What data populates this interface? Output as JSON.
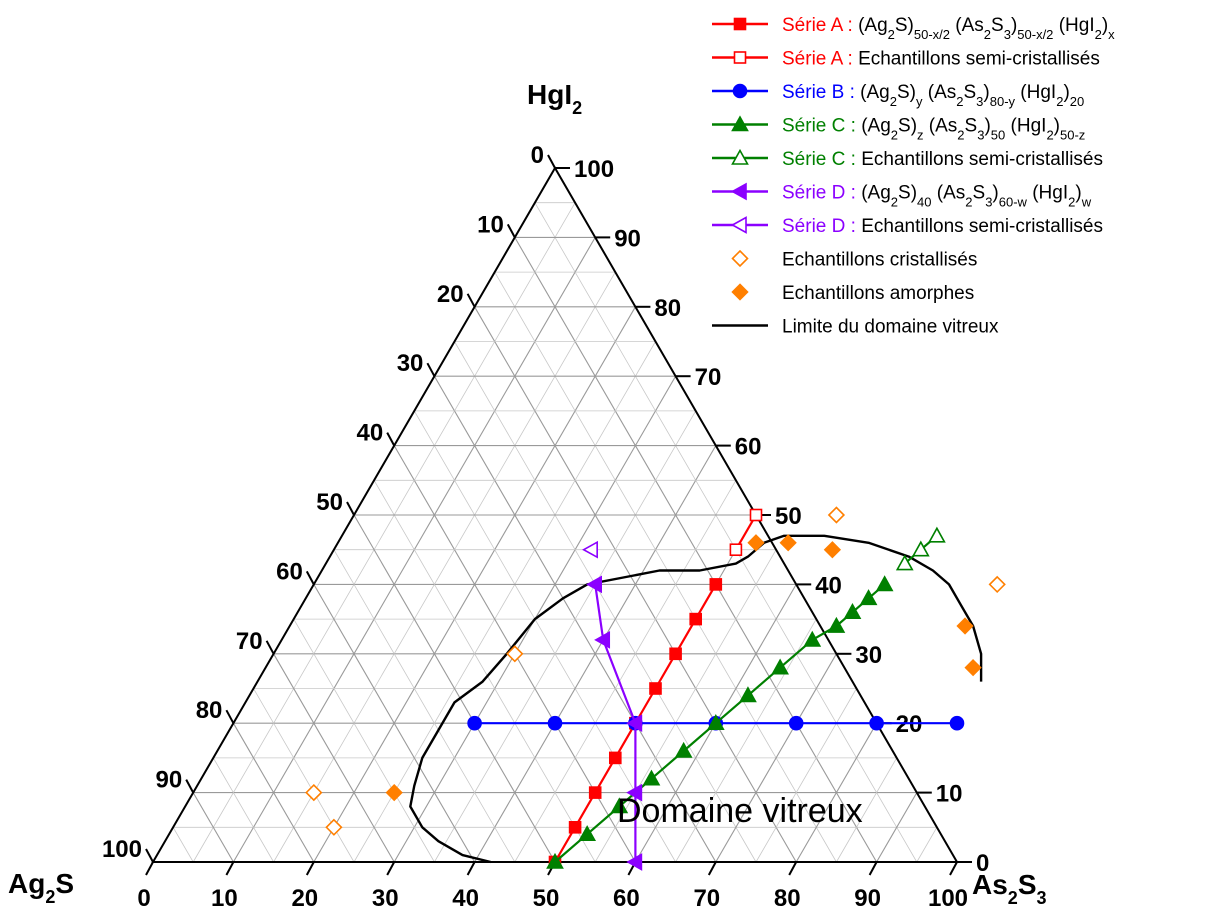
{
  "chart_data": {
    "type": "scatter",
    "subtype": "ternary",
    "vertices": {
      "top": {
        "base": "HgI",
        "sub": "2",
        "tail": ""
      },
      "left": {
        "base": "Ag",
        "sub": "2",
        "tail": "S"
      },
      "right": {
        "base": "As",
        "sub": "2",
        "tail": "S",
        "sub2": "3"
      }
    },
    "axes": {
      "bottom_ticks": [
        "0",
        "10",
        "20",
        "30",
        "40",
        "50",
        "60",
        "70",
        "80",
        "90",
        "100"
      ],
      "right_ticks": [
        "0",
        "10",
        "20",
        "30",
        "40",
        "50",
        "60",
        "70",
        "80",
        "90",
        "100"
      ],
      "left_ticks": [
        "0",
        "10",
        "20",
        "30",
        "40",
        "50",
        "60",
        "70",
        "80",
        "90",
        "100"
      ],
      "grid_step": 5,
      "grid": true
    },
    "annotation": "Domaine vitreux",
    "legend_position": "top-right",
    "colors": {
      "red": "#ff0000",
      "blue": "#0000ff",
      "green": "#008000",
      "violet": "#8b00ff",
      "orange": "#ff7f00",
      "black": "#000000"
    },
    "series": [
      {
        "name": "Série A",
        "formula": "(Ag2S)50-x/2 (As2S3)50-x/2 (HgI2)x",
        "color": "#ff0000",
        "marker": "square",
        "filled": true,
        "line": true,
        "points": [
          [
            50,
            0
          ],
          [
            50,
            5
          ],
          [
            50,
            10
          ],
          [
            50,
            15
          ],
          [
            50,
            20
          ],
          [
            50,
            25
          ],
          [
            50,
            30
          ],
          [
            50,
            35
          ],
          [
            50,
            40
          ]
        ]
      },
      {
        "name": "Série A",
        "formula": "Echantillons semi-cristallisés",
        "color": "#ff0000",
        "marker": "square",
        "filled": false,
        "line": true,
        "points": [
          [
            50,
            45
          ],
          [
            50,
            50
          ]
        ]
      },
      {
        "name": "Série B",
        "formula": "(Ag2S)y (As2S3)80-y (HgI2)20",
        "color": "#0000ff",
        "marker": "circle",
        "filled": true,
        "line": true,
        "points": [
          [
            30,
            20
          ],
          [
            40,
            20
          ],
          [
            50,
            20
          ],
          [
            60,
            20
          ],
          [
            70,
            20
          ],
          [
            80,
            20
          ],
          [
            90,
            20
          ]
        ]
      },
      {
        "name": "Série C",
        "formula": "(Ag2S)z (As2S3)50 (HgI2)50-z",
        "color": "#008000",
        "marker": "triangle-up",
        "filled": true,
        "line": true,
        "points": [
          [
            50,
            0
          ],
          [
            52,
            4
          ],
          [
            54,
            8
          ],
          [
            56,
            12
          ],
          [
            58,
            16
          ],
          [
            60,
            20
          ],
          [
            62,
            24
          ],
          [
            64,
            28
          ],
          [
            66,
            32
          ],
          [
            68,
            34
          ],
          [
            69,
            36
          ],
          [
            70,
            38
          ],
          [
            71,
            40
          ]
        ]
      },
      {
        "name": "Série C",
        "formula": "Echantillons semi-cristallisés",
        "color": "#008000",
        "marker": "triangle-up",
        "filled": false,
        "line": true,
        "points": [
          [
            72,
            43
          ],
          [
            73,
            45
          ],
          [
            74,
            47
          ]
        ]
      },
      {
        "name": "Série D",
        "formula": "(Ag2S)40 (As2S3)60-w (HgI2)w",
        "color": "#8b00ff",
        "marker": "triangle-left",
        "filled": true,
        "line": true,
        "points": [
          [
            60,
            0
          ],
          [
            55,
            10
          ],
          [
            50,
            20
          ],
          [
            40,
            32
          ],
          [
            35,
            40
          ]
        ]
      },
      {
        "name": "Série D",
        "formula": "Echantillons semi-cristallisés",
        "color": "#8b00ff",
        "marker": "triangle-left",
        "filled": false,
        "line": true,
        "points": [
          [
            32,
            45
          ]
        ]
      },
      {
        "name": "Echantillons cristallisés",
        "color": "#ff7f00",
        "marker": "diamond",
        "filled": false,
        "line": false,
        "points": [
          [
            60,
            50
          ],
          [
            30,
            30
          ],
          [
            15,
            10
          ],
          [
            20,
            5
          ],
          [
            85,
            40
          ]
        ]
      },
      {
        "name": "Echantillons amorphes",
        "color": "#ff7f00",
        "marker": "diamond",
        "filled": true,
        "line": false,
        "points": [
          [
            25,
            10
          ],
          [
            84,
            34
          ],
          [
            88,
            28
          ],
          [
            62,
            45
          ],
          [
            56,
            46
          ],
          [
            52,
            46
          ]
        ]
      },
      {
        "name": "Limite du domaine vitreux",
        "color": "#000000",
        "marker": "none",
        "filled": false,
        "line": true,
        "points": [
          [
            42,
            0
          ],
          [
            38,
            1
          ],
          [
            34,
            3
          ],
          [
            31,
            5
          ],
          [
            28,
            8
          ],
          [
            27,
            11
          ],
          [
            26,
            15
          ],
          [
            26,
            19
          ],
          [
            26,
            23
          ],
          [
            28,
            26
          ],
          [
            29,
            30
          ],
          [
            30,
            35
          ],
          [
            32,
            38
          ],
          [
            34,
            40
          ],
          [
            38,
            41
          ],
          [
            42,
            42
          ],
          [
            47,
            42
          ],
          [
            51,
            43
          ],
          [
            52,
            44
          ],
          [
            53,
            46
          ],
          [
            55,
            47
          ],
          [
            60,
            47
          ],
          [
            66,
            46
          ],
          [
            72,
            44
          ],
          [
            76,
            42
          ],
          [
            79,
            40
          ],
          [
            82,
            37
          ],
          [
            85,
            34
          ],
          [
            88,
            30
          ],
          [
            90,
            26
          ]
        ]
      }
    ]
  },
  "legend": [
    {
      "label": "Série A",
      "sep": " : ",
      "desc_html": "(Ag<tspan baseline-shift='sub' font-size='13'>2</tspan>S)<tspan baseline-shift='sub' font-size='13'>50-x/2</tspan> (As<tspan baseline-shift='sub' font-size='13'>2</tspan>S<tspan baseline-shift='sub' font-size='13'>3</tspan>)<tspan baseline-shift='sub' font-size='13'>50-x/2</tspan> (HgI<tspan baseline-shift='sub' font-size='13'>2</tspan>)<tspan baseline-shift='sub' font-size='13'>x</tspan>",
      "color": "#ff0000",
      "marker": "square",
      "filled": true,
      "line": true
    },
    {
      "label": "Série A",
      "sep": " : ",
      "desc": "Echantillons semi-cristallisés",
      "color": "#ff0000",
      "marker": "square",
      "filled": false,
      "line": true
    },
    {
      "label": "Série B",
      "sep": " : ",
      "desc_html": "(Ag<tspan baseline-shift='sub' font-size='13'>2</tspan>S)<tspan baseline-shift='sub' font-size='13'>y</tspan> (As<tspan baseline-shift='sub' font-size='13'>2</tspan>S<tspan baseline-shift='sub' font-size='13'>3</tspan>)<tspan baseline-shift='sub' font-size='13'>80-y</tspan> (HgI<tspan baseline-shift='sub' font-size='13'>2</tspan>)<tspan baseline-shift='sub' font-size='13'>20</tspan>",
      "color": "#0000ff",
      "marker": "circle",
      "filled": true,
      "line": true
    },
    {
      "label": "Série C",
      "sep": " : ",
      "desc_html": "(Ag<tspan baseline-shift='sub' font-size='13'>2</tspan>S)<tspan baseline-shift='sub' font-size='13'>z</tspan> (As<tspan baseline-shift='sub' font-size='13'>2</tspan>S<tspan baseline-shift='sub' font-size='13'>3</tspan>)<tspan baseline-shift='sub' font-size='13'>50</tspan> (HgI<tspan baseline-shift='sub' font-size='13'>2</tspan>)<tspan baseline-shift='sub' font-size='13'>50-z</tspan>",
      "color": "#008000",
      "marker": "triangle-up",
      "filled": true,
      "line": true
    },
    {
      "label": "Série C",
      "sep": " : ",
      "desc": "Echantillons semi-cristallisés",
      "color": "#008000",
      "marker": "triangle-up",
      "filled": false,
      "line": true
    },
    {
      "label": "Série D",
      "sep": " : ",
      "desc_html": "(Ag<tspan baseline-shift='sub' font-size='13'>2</tspan>S)<tspan baseline-shift='sub' font-size='13'>40</tspan> (As<tspan baseline-shift='sub' font-size='13'>2</tspan>S<tspan baseline-shift='sub' font-size='13'>3</tspan>)<tspan baseline-shift='sub' font-size='13'>60-w</tspan> (HgI<tspan baseline-shift='sub' font-size='13'>2</tspan>)<tspan baseline-shift='sub' font-size='13'>w</tspan>",
      "color": "#8b00ff",
      "marker": "triangle-left",
      "filled": true,
      "line": true
    },
    {
      "label": "Série D",
      "sep": " : ",
      "desc": "Echantillons semi-cristallisés",
      "color": "#8b00ff",
      "marker": "triangle-left",
      "filled": false,
      "line": true
    },
    {
      "label": "",
      "sep": "",
      "desc": "Echantillons cristallisés",
      "color": "#ff7f00",
      "marker": "diamond",
      "filled": false,
      "line": false
    },
    {
      "label": "",
      "sep": "",
      "desc": "Echantillons amorphes",
      "color": "#ff7f00",
      "marker": "diamond",
      "filled": true,
      "line": false
    },
    {
      "label": "",
      "sep": "",
      "desc": "Limite du domaine vitreux",
      "color": "#000000",
      "marker": "none",
      "filled": false,
      "line": true
    }
  ]
}
